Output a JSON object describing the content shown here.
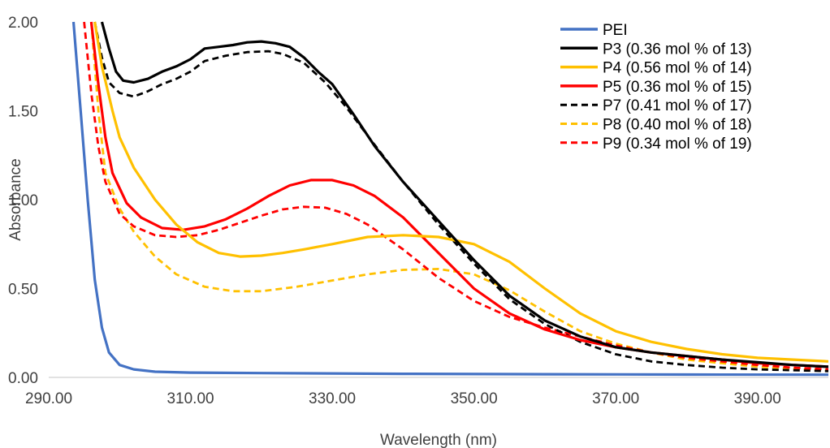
{
  "chart_data": {
    "type": "line",
    "title": "",
    "xlabel": "Wavelength (nm)",
    "ylabel": "Absorbance",
    "xlim": [
      290,
      400
    ],
    "ylim": [
      0,
      2
    ],
    "x_ticks": [
      "290.00",
      "310.00",
      "330.00",
      "350.00",
      "370.00",
      "390.00"
    ],
    "x_tick_values": [
      290,
      310,
      330,
      350,
      370,
      390
    ],
    "y_ticks": [
      "0.00",
      "0.50",
      "1.00",
      "1.50",
      "2.00"
    ],
    "y_tick_values": [
      0,
      0.5,
      1,
      1.5,
      2
    ],
    "grid": false,
    "legend_position": "top-right",
    "series": [
      {
        "name": "PEI",
        "color": "#4472c4",
        "dash": "solid",
        "points": [
          [
            293.5,
            2.0
          ],
          [
            294.5,
            1.5
          ],
          [
            295.5,
            1.0
          ],
          [
            296.5,
            0.55
          ],
          [
            297.5,
            0.28
          ],
          [
            298.5,
            0.14
          ],
          [
            300,
            0.07
          ],
          [
            302,
            0.045
          ],
          [
            305,
            0.032
          ],
          [
            310,
            0.027
          ],
          [
            320,
            0.024
          ],
          [
            340,
            0.02
          ],
          [
            360,
            0.018
          ],
          [
            380,
            0.016
          ],
          [
            400,
            0.015
          ]
        ]
      },
      {
        "name": "P3 (0.36 mol % of 13)",
        "color": "#000000",
        "dash": "solid",
        "points": [
          [
            297.5,
            2.0
          ],
          [
            298.5,
            1.85
          ],
          [
            299.5,
            1.72
          ],
          [
            300.5,
            1.67
          ],
          [
            302,
            1.66
          ],
          [
            304,
            1.68
          ],
          [
            306,
            1.72
          ],
          [
            308,
            1.75
          ],
          [
            310,
            1.79
          ],
          [
            312,
            1.85
          ],
          [
            314,
            1.86
          ],
          [
            316,
            1.87
          ],
          [
            318,
            1.885
          ],
          [
            320,
            1.89
          ],
          [
            322,
            1.88
          ],
          [
            324,
            1.86
          ],
          [
            326,
            1.8
          ],
          [
            328,
            1.72
          ],
          [
            330,
            1.65
          ],
          [
            333,
            1.48
          ],
          [
            336,
            1.3
          ],
          [
            340,
            1.1
          ],
          [
            345,
            0.88
          ],
          [
            350,
            0.66
          ],
          [
            355,
            0.46
          ],
          [
            360,
            0.32
          ],
          [
            365,
            0.23
          ],
          [
            370,
            0.17
          ],
          [
            375,
            0.14
          ],
          [
            380,
            0.12
          ],
          [
            385,
            0.1
          ],
          [
            390,
            0.085
          ],
          [
            395,
            0.07
          ],
          [
            400,
            0.06
          ]
        ]
      },
      {
        "name": "P4 (0.56 mol % of 14)",
        "color": "#ffc000",
        "dash": "solid",
        "points": [
          [
            296.5,
            2.0
          ],
          [
            297.5,
            1.75
          ],
          [
            299,
            1.5
          ],
          [
            300,
            1.35
          ],
          [
            302,
            1.18
          ],
          [
            305,
            1.0
          ],
          [
            308,
            0.86
          ],
          [
            311,
            0.76
          ],
          [
            314,
            0.7
          ],
          [
            317,
            0.68
          ],
          [
            320,
            0.685
          ],
          [
            323,
            0.7
          ],
          [
            326,
            0.72
          ],
          [
            330,
            0.75
          ],
          [
            335,
            0.79
          ],
          [
            340,
            0.8
          ],
          [
            345,
            0.79
          ],
          [
            350,
            0.75
          ],
          [
            355,
            0.65
          ],
          [
            360,
            0.5
          ],
          [
            365,
            0.36
          ],
          [
            370,
            0.26
          ],
          [
            375,
            0.2
          ],
          [
            380,
            0.16
          ],
          [
            385,
            0.13
          ],
          [
            390,
            0.11
          ],
          [
            395,
            0.1
          ],
          [
            400,
            0.09
          ]
        ]
      },
      {
        "name": "P5 (0.36 mol % of 15)",
        "color": "#ff0000",
        "dash": "solid",
        "points": [
          [
            296,
            2.0
          ],
          [
            297,
            1.65
          ],
          [
            298,
            1.35
          ],
          [
            299,
            1.15
          ],
          [
            301,
            0.98
          ],
          [
            303,
            0.9
          ],
          [
            306,
            0.84
          ],
          [
            309,
            0.83
          ],
          [
            312,
            0.85
          ],
          [
            315,
            0.89
          ],
          [
            318,
            0.95
          ],
          [
            321,
            1.02
          ],
          [
            324,
            1.08
          ],
          [
            327,
            1.11
          ],
          [
            330,
            1.11
          ],
          [
            333,
            1.08
          ],
          [
            336,
            1.02
          ],
          [
            340,
            0.9
          ],
          [
            345,
            0.7
          ],
          [
            350,
            0.5
          ],
          [
            355,
            0.36
          ],
          [
            360,
            0.27
          ],
          [
            365,
            0.21
          ],
          [
            370,
            0.17
          ],
          [
            375,
            0.14
          ],
          [
            380,
            0.12
          ],
          [
            385,
            0.1
          ],
          [
            390,
            0.08
          ],
          [
            395,
            0.07
          ],
          [
            400,
            0.06
          ]
        ]
      },
      {
        "name": "P7 (0.41 mol % of 17)",
        "color": "#000000",
        "dash": "dashed",
        "points": [
          [
            296.5,
            2.0
          ],
          [
            297.5,
            1.8
          ],
          [
            298.5,
            1.66
          ],
          [
            300,
            1.6
          ],
          [
            302,
            1.58
          ],
          [
            304,
            1.61
          ],
          [
            306,
            1.65
          ],
          [
            308,
            1.68
          ],
          [
            310,
            1.72
          ],
          [
            312,
            1.78
          ],
          [
            315,
            1.81
          ],
          [
            318,
            1.83
          ],
          [
            321,
            1.835
          ],
          [
            323,
            1.82
          ],
          [
            326,
            1.77
          ],
          [
            329,
            1.66
          ],
          [
            332,
            1.52
          ],
          [
            335,
            1.36
          ],
          [
            340,
            1.1
          ],
          [
            345,
            0.86
          ],
          [
            350,
            0.64
          ],
          [
            355,
            0.44
          ],
          [
            360,
            0.3
          ],
          [
            365,
            0.2
          ],
          [
            370,
            0.13
          ],
          [
            375,
            0.09
          ],
          [
            380,
            0.07
          ],
          [
            385,
            0.055
          ],
          [
            390,
            0.045
          ],
          [
            395,
            0.04
          ],
          [
            400,
            0.035
          ]
        ]
      },
      {
        "name": "P8 (0.40 mol % of 18)",
        "color": "#ffc000",
        "dash": "dashed",
        "points": [
          [
            296,
            2.0
          ],
          [
            297,
            1.5
          ],
          [
            298,
            1.15
          ],
          [
            300,
            0.95
          ],
          [
            302,
            0.82
          ],
          [
            305,
            0.68
          ],
          [
            308,
            0.58
          ],
          [
            312,
            0.51
          ],
          [
            316,
            0.485
          ],
          [
            320,
            0.485
          ],
          [
            325,
            0.51
          ],
          [
            330,
            0.545
          ],
          [
            335,
            0.58
          ],
          [
            340,
            0.605
          ],
          [
            345,
            0.61
          ],
          [
            350,
            0.58
          ],
          [
            355,
            0.49
          ],
          [
            360,
            0.37
          ],
          [
            365,
            0.26
          ],
          [
            370,
            0.19
          ],
          [
            375,
            0.14
          ],
          [
            380,
            0.1
          ],
          [
            385,
            0.08
          ],
          [
            390,
            0.06
          ],
          [
            395,
            0.05
          ],
          [
            400,
            0.04
          ]
        ]
      },
      {
        "name": "P9 (0.34 mol % of 19)",
        "color": "#ff0000",
        "dash": "dashed",
        "points": [
          [
            295,
            2.0
          ],
          [
            296,
            1.6
          ],
          [
            297,
            1.3
          ],
          [
            298,
            1.1
          ],
          [
            300,
            0.92
          ],
          [
            302,
            0.85
          ],
          [
            305,
            0.8
          ],
          [
            308,
            0.79
          ],
          [
            311,
            0.8
          ],
          [
            314,
            0.83
          ],
          [
            317,
            0.87
          ],
          [
            320,
            0.91
          ],
          [
            323,
            0.945
          ],
          [
            326,
            0.96
          ],
          [
            329,
            0.955
          ],
          [
            332,
            0.92
          ],
          [
            335,
            0.86
          ],
          [
            340,
            0.72
          ],
          [
            345,
            0.56
          ],
          [
            350,
            0.43
          ],
          [
            355,
            0.34
          ],
          [
            360,
            0.28
          ],
          [
            365,
            0.23
          ],
          [
            370,
            0.18
          ],
          [
            375,
            0.14
          ],
          [
            380,
            0.11
          ],
          [
            385,
            0.09
          ],
          [
            390,
            0.07
          ],
          [
            395,
            0.055
          ],
          [
            400,
            0.045
          ]
        ]
      }
    ]
  }
}
